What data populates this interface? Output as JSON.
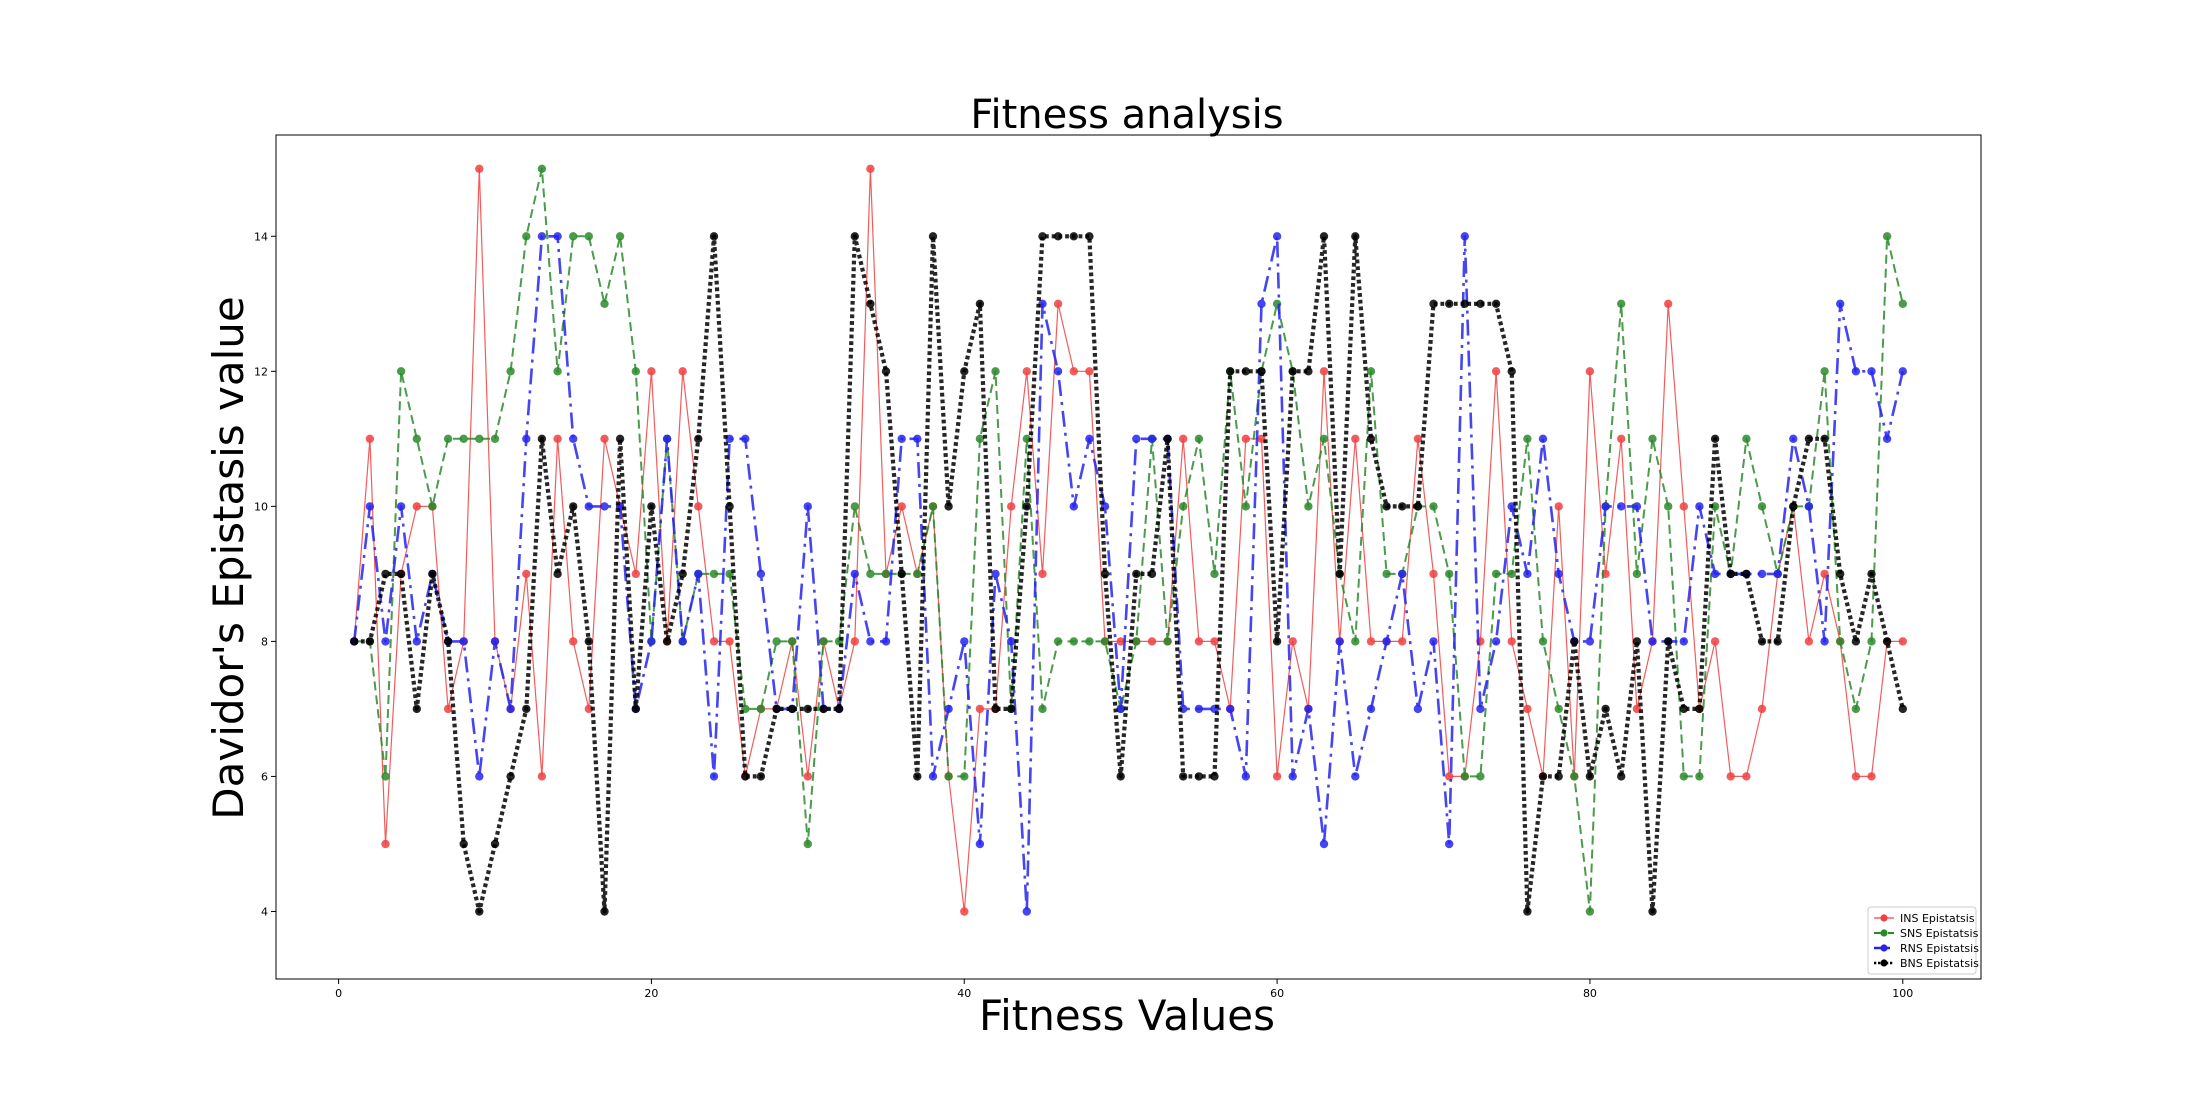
{
  "chart_data": {
    "type": "line",
    "title": "Fitness analysis",
    "xlabel": "Fitness Values",
    "ylabel": "Davidor's Epistasis value",
    "xlim": [
      -4,
      105
    ],
    "ylim": [
      3.0,
      15.5
    ],
    "xticks": [
      0,
      20,
      40,
      60,
      80,
      100
    ],
    "yticks": [
      4,
      6,
      8,
      10,
      12,
      14
    ],
    "grid": false,
    "legend_position": "lower-right",
    "x": [
      1,
      2,
      3,
      4,
      5,
      6,
      7,
      8,
      9,
      10,
      11,
      12,
      13,
      14,
      15,
      16,
      17,
      18,
      19,
      20,
      21,
      22,
      23,
      24,
      25,
      26,
      27,
      28,
      29,
      30,
      31,
      32,
      33,
      34,
      35,
      36,
      37,
      38,
      39,
      40,
      41,
      42,
      43,
      44,
      45,
      46,
      47,
      48,
      49,
      50,
      51,
      52,
      53,
      54,
      55,
      56,
      57,
      58,
      59,
      60,
      61,
      62,
      63,
      64,
      65,
      66,
      67,
      68,
      69,
      70,
      71,
      72,
      73,
      74,
      75,
      76,
      77,
      78,
      79,
      80,
      81,
      82,
      83,
      84,
      85,
      86,
      87,
      88,
      89,
      90,
      91,
      92,
      93,
      94,
      95,
      96,
      97,
      98,
      99,
      100
    ],
    "series": [
      {
        "name": "INS Epistatsis",
        "color": "#f04040",
        "style": "solid",
        "width": 1.2,
        "values": [
          8,
          11,
          5,
          9,
          10,
          10,
          7,
          8,
          15,
          8,
          7,
          9,
          6,
          11,
          8,
          7,
          11,
          10,
          9,
          12,
          8,
          12,
          10,
          8,
          8,
          6,
          7,
          7,
          8,
          6,
          8,
          7,
          8,
          15,
          9,
          10,
          9,
          10,
          6,
          4,
          7,
          7,
          10,
          12,
          9,
          13,
          12,
          12,
          8,
          8,
          8,
          8,
          8,
          11,
          8,
          8,
          7,
          11,
          11,
          6,
          8,
          7,
          12,
          8,
          11,
          8,
          8,
          8,
          11,
          9,
          6,
          6,
          8,
          12,
          8,
          7,
          6,
          10,
          6,
          12,
          9,
          11,
          7,
          8,
          13,
          10,
          7,
          8,
          6,
          6,
          7,
          9,
          10,
          8,
          9,
          8,
          6,
          6,
          8,
          8
        ]
      },
      {
        "name": "SNS Epistatsis",
        "color": "#2a8a2a",
        "style": "dashed",
        "width": 2.0,
        "values": [
          8,
          8,
          6,
          12,
          11,
          10,
          11,
          11,
          11,
          11,
          12,
          14,
          15,
          12,
          14,
          14,
          13,
          14,
          12,
          8,
          11,
          8,
          9,
          9,
          9,
          7,
          7,
          8,
          8,
          5,
          8,
          8,
          10,
          9,
          9,
          9,
          9,
          10,
          6,
          6,
          11,
          12,
          7,
          11,
          7,
          8,
          8,
          8,
          8,
          7,
          8,
          11,
          8,
          10,
          11,
          9,
          12,
          10,
          12,
          13,
          12,
          10,
          11,
          9,
          8,
          12,
          9,
          9,
          10,
          10,
          9,
          6,
          6,
          9,
          9,
          11,
          8,
          7,
          6,
          4,
          10,
          13,
          9,
          11,
          10,
          6,
          6,
          10,
          9,
          11,
          10,
          9,
          10,
          10,
          12,
          8,
          7,
          8,
          14,
          13
        ]
      },
      {
        "name": "RNS Epistatsis",
        "color": "#2424ee",
        "style": "dashdot",
        "width": 2.6,
        "values": [
          8,
          10,
          8,
          10,
          8,
          9,
          8,
          8,
          6,
          8,
          7,
          11,
          14,
          14,
          11,
          10,
          10,
          10,
          7,
          8,
          11,
          8,
          9,
          6,
          11,
          11,
          9,
          7,
          7,
          10,
          7,
          7,
          9,
          8,
          8,
          11,
          11,
          6,
          7,
          8,
          5,
          9,
          8,
          4,
          13,
          12,
          10,
          11,
          10,
          7,
          11,
          11,
          11,
          7,
          7,
          7,
          7,
          6,
          13,
          14,
          6,
          7,
          5,
          8,
          6,
          7,
          8,
          9,
          7,
          8,
          5,
          14,
          7,
          8,
          10,
          9,
          11,
          9,
          8,
          8,
          10,
          10,
          10,
          8,
          8,
          8,
          10,
          9,
          9,
          9,
          9,
          9,
          11,
          10,
          8,
          13,
          12,
          12,
          11,
          12
        ]
      },
      {
        "name": "BNS Epistatsis",
        "color": "#000000",
        "style": "dotted",
        "width": 4.2,
        "values": [
          8,
          8,
          9,
          9,
          7,
          9,
          8,
          5,
          4,
          5,
          6,
          7,
          11,
          9,
          10,
          8,
          4,
          11,
          7,
          10,
          8,
          9,
          11,
          14,
          10,
          6,
          6,
          7,
          7,
          7,
          7,
          7,
          14,
          13,
          12,
          9,
          6,
          14,
          10,
          12,
          13,
          7,
          7,
          10,
          14,
          14,
          14,
          14,
          9,
          6,
          9,
          9,
          11,
          6,
          6,
          6,
          12,
          12,
          12,
          8,
          12,
          12,
          14,
          9,
          14,
          11,
          10,
          10,
          10,
          13,
          13,
          13,
          13,
          13,
          12,
          4,
          6,
          6,
          8,
          6,
          7,
          6,
          8,
          4,
          8,
          7,
          7,
          11,
          9,
          9,
          8,
          8,
          10,
          11,
          11,
          9,
          8,
          9,
          8,
          7
        ]
      }
    ]
  }
}
